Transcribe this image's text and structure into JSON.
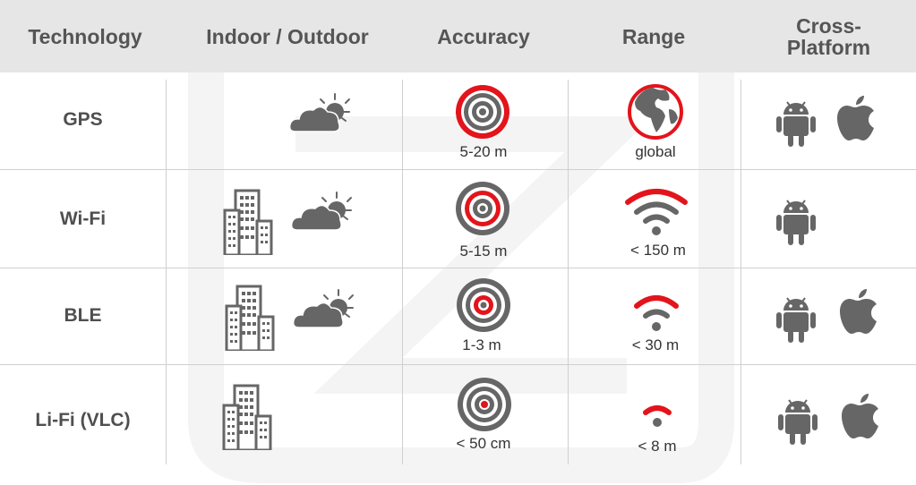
{
  "colors": {
    "header_bg": "#e6e6e6",
    "icon_gray": "#666666",
    "accent_red": "#e3141b",
    "text": "#4f4f4f"
  },
  "headers": [
    "Technology",
    "Indoor / Outdoor",
    "Accuracy",
    "Range",
    "Cross-\nPlatform"
  ],
  "rows": [
    {
      "technology": "GPS",
      "environment": [
        "cloud-sun-icon"
      ],
      "accuracy": "5-20 m",
      "range": "global",
      "platforms": [
        "android-icon",
        "apple-icon"
      ]
    },
    {
      "technology": "Wi-Fi",
      "environment": [
        "building-icon",
        "cloud-sun-icon"
      ],
      "accuracy": "5-15 m",
      "range": "< 150 m",
      "platforms": [
        "android-icon"
      ]
    },
    {
      "technology": "BLE",
      "environment": [
        "building-icon",
        "cloud-sun-icon"
      ],
      "accuracy": "1-3 m",
      "range": "< 30 m",
      "platforms": [
        "android-icon",
        "apple-icon"
      ]
    },
    {
      "technology": "Li-Fi (VLC)",
      "environment": [
        "building-icon"
      ],
      "accuracy": "< 50 cm",
      "range": "< 8 m",
      "platforms": [
        "android-icon",
        "apple-icon"
      ]
    }
  ]
}
